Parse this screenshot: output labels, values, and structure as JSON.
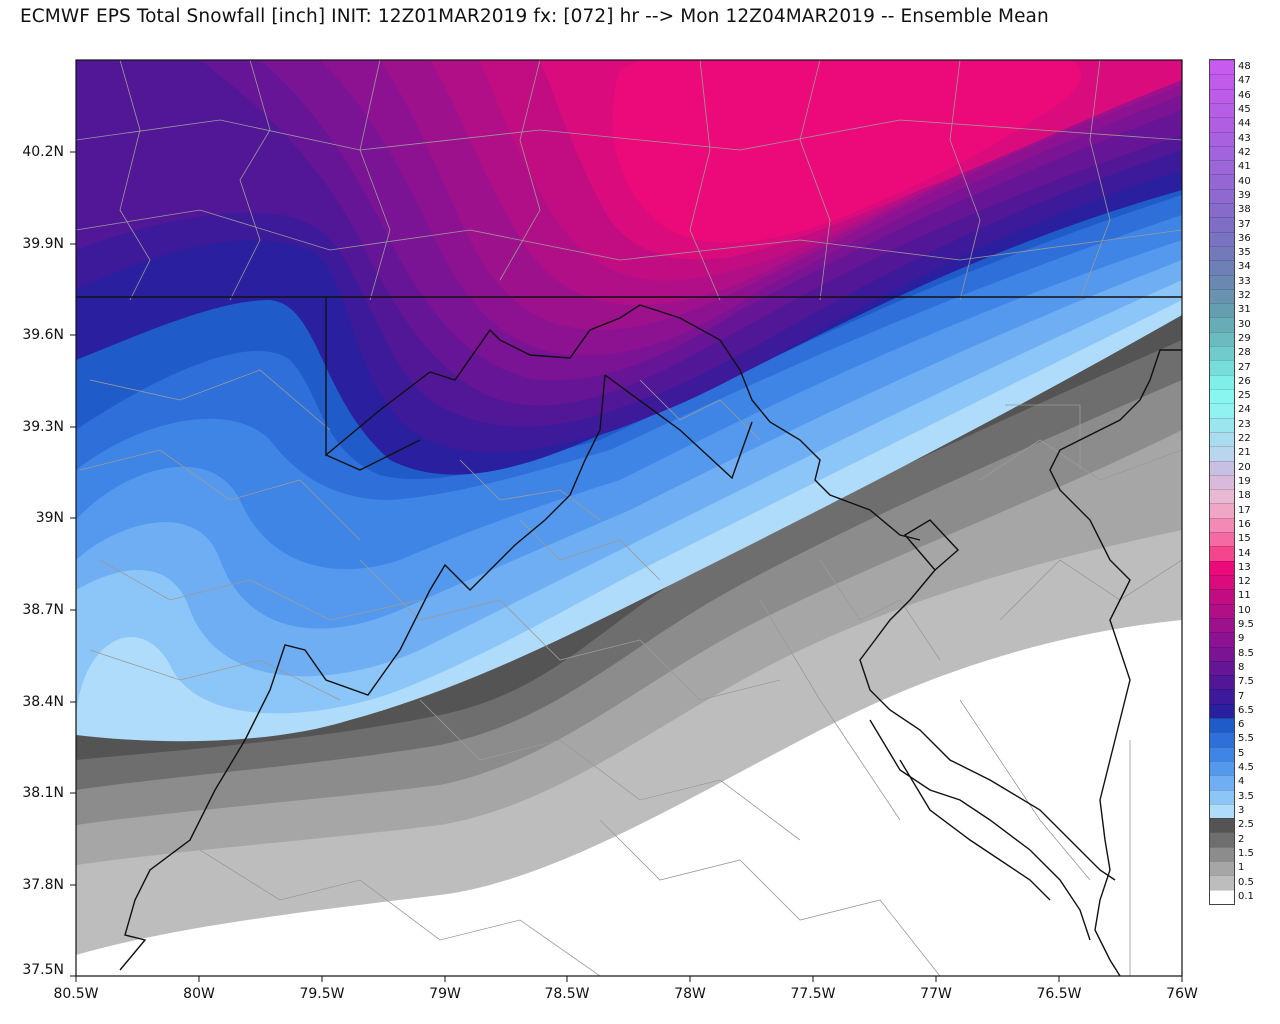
{
  "title": "ECMWF EPS Total Snowfall [inch] INIT: 12Z01MAR2019 fx: [072] hr --> Mon 12Z04MAR2019 -- Ensemble Mean",
  "lat_labels": [
    "40.2N",
    "39.9N",
    "39.6N",
    "39.3N",
    "39N",
    "38.7N",
    "38.4N",
    "38.1N",
    "37.8N",
    "37.5N"
  ],
  "lon_labels": [
    "80.5W",
    "80W",
    "79.5W",
    "79W",
    "78.5W",
    "78W",
    "77.5W",
    "77W",
    "76.5W",
    "76W"
  ],
  "legend": {
    "levels": [
      "0.1",
      "0.5",
      "1",
      "1.5",
      "2",
      "2.5",
      "3",
      "3.5",
      "4",
      "4.5",
      "5",
      "5.5",
      "6",
      "6.5",
      "7",
      "7.5",
      "8",
      "8.5",
      "9",
      "9.5",
      "10",
      "11",
      "12",
      "13",
      "14",
      "15",
      "16",
      "17",
      "18",
      "19",
      "20",
      "21",
      "22",
      "23",
      "24",
      "25",
      "26",
      "27",
      "28",
      "29",
      "30",
      "31",
      "32",
      "33",
      "34",
      "35",
      "36",
      "37",
      "38",
      "39",
      "40",
      "41",
      "42",
      "43",
      "44",
      "45",
      "46",
      "47",
      "48"
    ],
    "colors": [
      "#ffffff",
      "#bdbdbd",
      "#a6a6a6",
      "#8c8c8c",
      "#6e6e6e",
      "#545454",
      "#aedcfa",
      "#8cc5f7",
      "#6faef3",
      "#5499ee",
      "#3f85e6",
      "#2f6fd9",
      "#1f5cc9",
      "#2a1f9e",
      "#3d1a9a",
      "#521797",
      "#661596",
      "#7a1394",
      "#8c1291",
      "#9e118c",
      "#b00f87",
      "#c20d82",
      "#d90b7d",
      "#ec0a7a",
      "#f5458f",
      "#f46aa3",
      "#f28ab5",
      "#f0a6c5",
      "#e9b8d2",
      "#d9b9dc",
      "#c7c0e3",
      "#b9d6ee",
      "#a8dcee",
      "#9be6ee",
      "#8ff3f2",
      "#88f7f0",
      "#80eee9",
      "#77ddd9",
      "#70cccc",
      "#6bbcc0",
      "#68acb7",
      "#669eb1",
      "#6892b0",
      "#6b88b3",
      "#6f80b7",
      "#7479bc",
      "#7a73c1",
      "#806ec6",
      "#876bcb",
      "#8e69d0",
      "#9567d4",
      "#9c65d8",
      "#a363dc",
      "#aa61e0",
      "#b05fe3",
      "#b65ee6",
      "#bc5ce9",
      "#c15bec",
      "#c75aef"
    ]
  }
}
